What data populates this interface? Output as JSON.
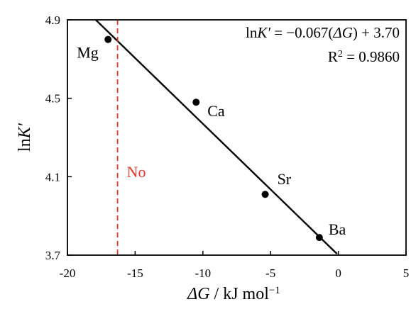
{
  "chart_data": {
    "type": "scatter",
    "title": "",
    "xlabel_italic": "ΔG",
    "xlabel_rest": " / kJ mol",
    "xlabel_sup": "−1",
    "ylabel_prefix": "ln",
    "ylabel_italic": "K′",
    "xlim": [
      -20,
      5
    ],
    "ylim": [
      3.7,
      4.9
    ],
    "xticks": [
      -20,
      -15,
      -10,
      -5,
      0,
      5
    ],
    "xtick_labels": [
      "-20",
      "-15",
      "-10",
      "-5",
      "0",
      "5"
    ],
    "yticks": [
      3.7,
      4.1,
      4.5,
      4.9
    ],
    "ytick_labels": [
      "3.7",
      "4.1",
      "4.5",
      "4.9"
    ],
    "grid": false,
    "points": [
      {
        "label": "Mg",
        "x": -17.0,
        "y": 4.8
      },
      {
        "label": "Ca",
        "x": -10.5,
        "y": 4.48
      },
      {
        "label": "Sr",
        "x": -5.4,
        "y": 4.01
      },
      {
        "label": "Ba",
        "x": -1.4,
        "y": 3.79
      }
    ],
    "fit_line": {
      "slope": -0.067,
      "intercept": 3.7
    },
    "equation": {
      "line1_prefix": "ln",
      "line1_italic": "K′",
      "line1_mid": " = −0.067(",
      "line1_italic2": "ΔG",
      "line1_end": ") + 3.70",
      "line2_base": "R",
      "line2_sup": "2",
      "line2_rest": " = 0.9860"
    },
    "reference_line": {
      "x": -16.3,
      "label": "No",
      "color": "#e0352b"
    }
  }
}
